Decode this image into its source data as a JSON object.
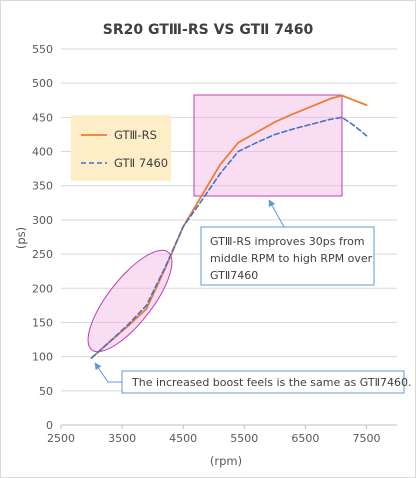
{
  "chart_data": {
    "type": "line",
    "title": "SR20 GTⅢ-RS VS GTⅡ 7460",
    "xlabel": "(rpm)",
    "ylabel": "(ps)",
    "xlim": [
      2500,
      8000
    ],
    "ylim": [
      0,
      550
    ],
    "xticks": [
      2500,
      3500,
      4500,
      5500,
      6500,
      7500
    ],
    "yticks": [
      0,
      50,
      100,
      150,
      200,
      250,
      300,
      350,
      400,
      450,
      500,
      550
    ],
    "grid": "horizontal",
    "legend_position": "top-left",
    "series": [
      {
        "name": "GTⅢ-RS",
        "color": "#ed7d31",
        "style": "solid",
        "x": [
          3000,
          3300,
          3600,
          3900,
          4200,
          4500,
          4800,
          5100,
          5400,
          5700,
          6000,
          6300,
          6600,
          6900,
          7100,
          7300,
          7500
        ],
        "y": [
          98,
          122,
          145,
          170,
          228,
          290,
          335,
          380,
          413,
          428,
          443,
          455,
          466,
          477,
          482,
          475,
          468
        ]
      },
      {
        "name": "GTⅡ 7460",
        "color": "#4472c4",
        "style": "dashed",
        "x": [
          3000,
          3300,
          3600,
          3900,
          4200,
          4500,
          4800,
          5100,
          5400,
          5700,
          6000,
          6300,
          6600,
          6900,
          7100,
          7300,
          7500
        ],
        "y": [
          98,
          122,
          147,
          175,
          230,
          290,
          328,
          367,
          400,
          413,
          425,
          433,
          440,
          447,
          450,
          438,
          423
        ]
      }
    ],
    "annotations": [
      {
        "text": "GTⅢ-RS improves 30ps from middle RPM to high RPM over GTⅡ7460",
        "lines": [
          "GTⅢ-RS improves 30ps from",
          "middle RPM to high RPM over",
          "GTⅡ7460"
        ]
      },
      {
        "text": "The increased boost feels is the same as GTⅡ7460."
      }
    ]
  },
  "colors": {
    "legend_bg": "#fdeec7",
    "highlight_fill": "#f2b3e3",
    "highlight_stroke": "#c23fb0",
    "callout_border": "#5b9bd5",
    "callout_arrow": "#5b9bd5",
    "grid": "#d9d9d9",
    "axis": "#bfbfbf"
  }
}
